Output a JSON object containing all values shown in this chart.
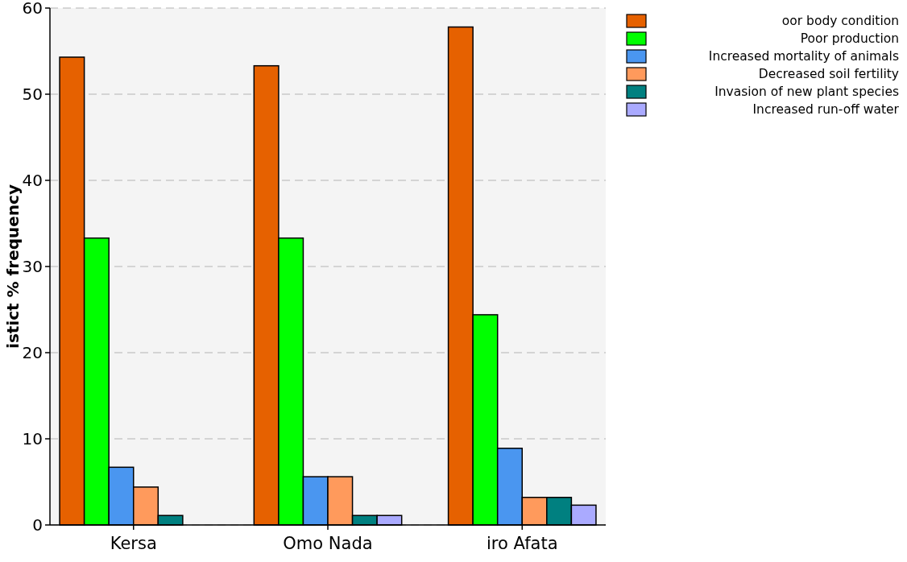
{
  "chart_data": {
    "type": "bar",
    "ylabel": "istict % frequency",
    "categories": [
      "Kersa",
      "Omo Nada",
      "iro Afata"
    ],
    "ylim": [
      0,
      60
    ],
    "yticks": [
      0,
      10,
      20,
      30,
      40,
      50,
      60
    ],
    "grid": "y",
    "legend": "top right",
    "series": [
      {
        "name": "oor body condition",
        "color": "#e66100",
        "values": [
          54.3,
          53.3,
          57.8
        ]
      },
      {
        "name": "Poor production",
        "color": "#00ff00",
        "values": [
          33.3,
          33.3,
          24.4
        ]
      },
      {
        "name": "Increased mortality of animals",
        "color": "#4a96f0",
        "values": [
          6.7,
          5.6,
          8.9
        ]
      },
      {
        "name": "Decreased soil fertility",
        "color": "#ff9a5c",
        "values": [
          4.4,
          5.6,
          3.2
        ]
      },
      {
        "name": "Invasion of new plant species",
        "color": "#008080",
        "values": [
          1.1,
          1.1,
          3.2
        ]
      },
      {
        "name": "Increased run-off water",
        "color": "#aaaaff",
        "values": [
          null,
          1.1,
          2.3
        ]
      }
    ]
  }
}
